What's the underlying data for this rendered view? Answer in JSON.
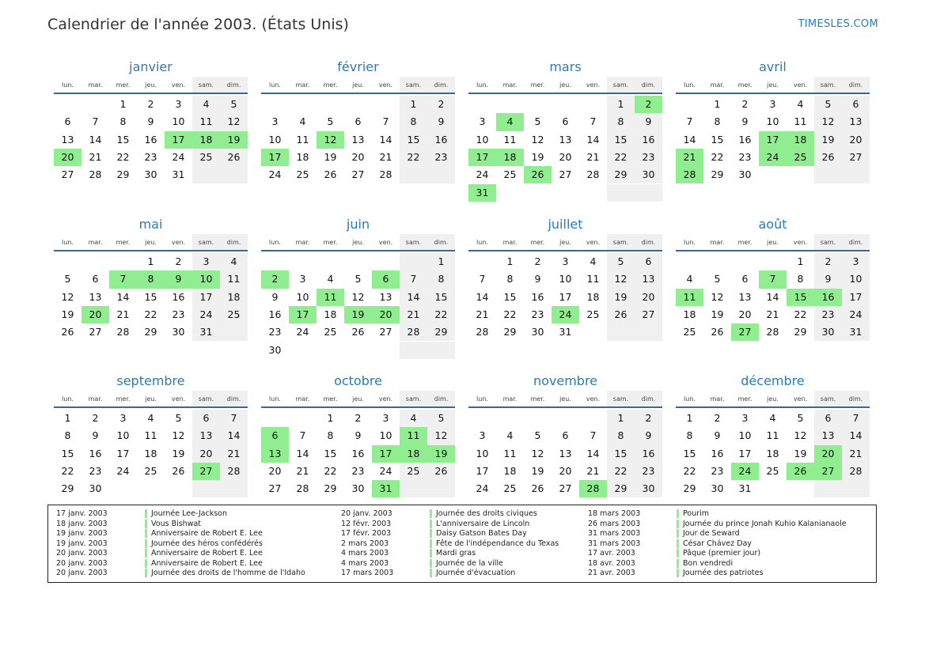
{
  "title": "Calendrier de l'année 2003. (États Unis)",
  "brand": "TIMESLES.COM",
  "colors": {
    "accent": "#2b7bb9",
    "holiday": "#90ee90",
    "weekend": "#f0f0f0",
    "rule": "#3f6591"
  },
  "weekdays": [
    "lun.",
    "mar.",
    "mer.",
    "jeu.",
    "ven.",
    "sam.",
    "dim."
  ],
  "months": [
    {
      "name": "janvier",
      "offset": 2,
      "days": 31,
      "holidays": [
        17,
        18,
        19,
        20
      ]
    },
    {
      "name": "février",
      "offset": 5,
      "days": 28,
      "holidays": [
        12,
        17
      ]
    },
    {
      "name": "mars",
      "offset": 5,
      "days": 31,
      "holidays": [
        2,
        4,
        17,
        18,
        26,
        31
      ]
    },
    {
      "name": "avril",
      "offset": 1,
      "days": 30,
      "holidays": [
        17,
        18,
        21,
        24,
        25,
        28
      ]
    },
    {
      "name": "mai",
      "offset": 3,
      "days": 31,
      "holidays": [
        7,
        8,
        9,
        10,
        20
      ]
    },
    {
      "name": "juin",
      "offset": 6,
      "days": 30,
      "holidays": [
        2,
        6,
        11,
        17,
        19,
        20
      ]
    },
    {
      "name": "juillet",
      "offset": 1,
      "days": 31,
      "holidays": [
        24
      ]
    },
    {
      "name": "août",
      "offset": 4,
      "days": 31,
      "holidays": [
        7,
        11,
        15,
        16,
        27
      ]
    },
    {
      "name": "septembre",
      "offset": 0,
      "days": 30,
      "holidays": [
        27
      ]
    },
    {
      "name": "octobre",
      "offset": 2,
      "days": 31,
      "holidays": [
        6,
        11,
        13,
        17,
        18,
        19,
        31
      ]
    },
    {
      "name": "novembre",
      "offset": 5,
      "days": 30,
      "holidays": [
        28
      ]
    },
    {
      "name": "décembre",
      "offset": 0,
      "days": 31,
      "holidays": [
        20,
        24,
        26,
        27
      ]
    }
  ],
  "legend": [
    [
      {
        "date": "17 janv. 2003",
        "name": "Journée Lee-Jackson"
      },
      {
        "date": "18 janv. 2003",
        "name": "Vous Bishwat"
      },
      {
        "date": "19 janv. 2003",
        "name": "Anniversaire de Robert E. Lee"
      },
      {
        "date": "19 janv. 2003",
        "name": "Journée des héros confédérés"
      },
      {
        "date": "20 janv. 2003",
        "name": "Anniversaire de Robert E. Lee"
      },
      {
        "date": "20 janv. 2003",
        "name": "Anniversaire de Robert E. Lee"
      },
      {
        "date": "20 janv. 2003",
        "name": "Journée des droits de l'homme de l'Idaho"
      }
    ],
    [
      {
        "date": "20 janv. 2003",
        "name": "Journée des droits civiques"
      },
      {
        "date": "12 févr. 2003",
        "name": "L'anniversaire de Lincoln"
      },
      {
        "date": "17 févr. 2003",
        "name": "Daisy Gatson Bates Day"
      },
      {
        "date": "2 mars 2003",
        "name": "Fête de l'indépendance du Texas"
      },
      {
        "date": "4 mars 2003",
        "name": "Mardi gras"
      },
      {
        "date": "4 mars 2003",
        "name": "Journée de la ville"
      },
      {
        "date": "17 mars 2003",
        "name": "Journée d'évacuation"
      }
    ],
    [
      {
        "date": "18 mars 2003",
        "name": "Pourim"
      },
      {
        "date": "26 mars 2003",
        "name": "Journée du prince Jonah Kuhio Kalanianaole"
      },
      {
        "date": "31 mars 2003",
        "name": "Jour de Seward"
      },
      {
        "date": "31 mars 2003",
        "name": "César Chávez Day"
      },
      {
        "date": "17 avr. 2003",
        "name": "Pâque (premier jour)"
      },
      {
        "date": "18 avr. 2003",
        "name": "Bon vendredi"
      },
      {
        "date": "21 avr. 2003",
        "name": "Journée des patriotes"
      }
    ]
  ]
}
